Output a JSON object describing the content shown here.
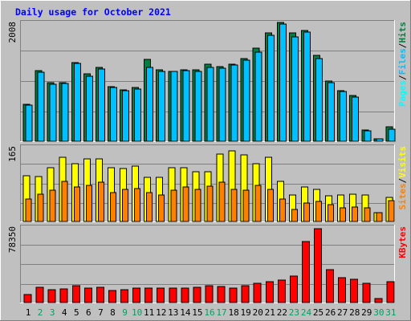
{
  "chart_data": {
    "type": "bar",
    "title": "Daily usage for October 2021",
    "categories": [
      "1",
      "2",
      "3",
      "4",
      "5",
      "6",
      "7",
      "8",
      "9",
      "10",
      "11",
      "12",
      "13",
      "14",
      "15",
      "16",
      "17",
      "18",
      "19",
      "20",
      "21",
      "22",
      "23",
      "24",
      "25",
      "26",
      "27",
      "28",
      "29",
      "30",
      "31"
    ],
    "weekend_days": [
      "2",
      "3",
      "9",
      "10",
      "16",
      "17",
      "23",
      "24",
      "30",
      "31"
    ],
    "panels": [
      {
        "id": "hits",
        "max_label": "2008",
        "ylim": [
          0,
          2008
        ],
        "legend": [
          "Pages",
          "Files",
          "Hits"
        ],
        "series": [
          {
            "name": "Hits",
            "values": [
              630,
              1210,
              1000,
              1000,
              1350,
              1150,
              1260,
              930,
              880,
              920,
              1400,
              1220,
              1200,
              1220,
              1220,
              1320,
              1280,
              1320,
              1420,
              1600,
              1860,
              2030,
              1850,
              1900,
              1470,
              1030,
              870,
              790,
              190,
              40,
              250
            ]
          },
          {
            "name": "Files",
            "values": [
              620,
              1180,
              970,
              990,
              1340,
              1120,
              1240,
              920,
              860,
              890,
              1260,
              1200,
              1190,
              1210,
              1200,
              1260,
              1250,
              1300,
              1390,
              1520,
              1810,
              2010,
              1790,
              1870,
              1420,
              1010,
              850,
              750,
              180,
              40,
              200
            ]
          },
          {
            "name": "Pages",
            "values": [
              0,
              0,
              0,
              0,
              0,
              0,
              0,
              0,
              0,
              0,
              0,
              0,
              0,
              0,
              0,
              0,
              0,
              0,
              0,
              0,
              0,
              0,
              0,
              0,
              0,
              0,
              0,
              0,
              0,
              0,
              0
            ]
          }
        ],
        "colors": {
          "Hits": "#008040",
          "Files": "#00c0ff",
          "Pages": "#00ffff"
        }
      },
      {
        "id": "visits",
        "max_label": "165",
        "ylim": [
          0,
          165
        ],
        "legend": [
          "Sites",
          "Visits"
        ],
        "series": [
          {
            "name": "Visits",
            "values": [
              103,
              102,
              122,
              145,
              130,
              142,
              142,
              122,
              120,
              125,
              100,
              100,
              122,
              122,
              112,
              112,
              152,
              160,
              150,
              130,
              145,
              90,
              60,
              78,
              72,
              58,
              60,
              62,
              60,
              20,
              55
            ]
          },
          {
            "name": "Sites",
            "values": [
              50,
              62,
              70,
              90,
              78,
              82,
              88,
              65,
              72,
              75,
              65,
              60,
              70,
              78,
              72,
              80,
              88,
              72,
              70,
              82,
              72,
              50,
              28,
              42,
              45,
              38,
              30,
              32,
              30,
              20,
              48
            ]
          }
        ],
        "colors": {
          "Sites": "#ff8000",
          "Visits": "#ffff00"
        }
      },
      {
        "id": "kbytes",
        "max_label": "78350",
        "ylim": [
          0,
          78350
        ],
        "legend": [
          "KBytes"
        ],
        "series": [
          {
            "name": "KBytes",
            "values": [
              8800,
              16000,
              14000,
              14500,
              17500,
              15500,
              15800,
              13000,
              14000,
              15500,
              15500,
              15200,
              15500,
              15500,
              16500,
              17500,
              17000,
              15500,
              17500,
              20500,
              22500,
              23500,
              28500,
              65000,
              78000,
              35000,
              26000,
              24500,
              20500,
              4200,
              22000
            ]
          }
        ],
        "colors": {
          "KBytes": "#ff0000"
        }
      }
    ]
  },
  "colors": {
    "background": "#c0c0c0",
    "plot_bg": "#c0c0c0",
    "grid": "#808080",
    "title": "#0000ff",
    "tick_weekday": "#000000",
    "tick_weekend": "#00a060",
    "max_label": "#000000",
    "legend_separator": "#000000"
  }
}
